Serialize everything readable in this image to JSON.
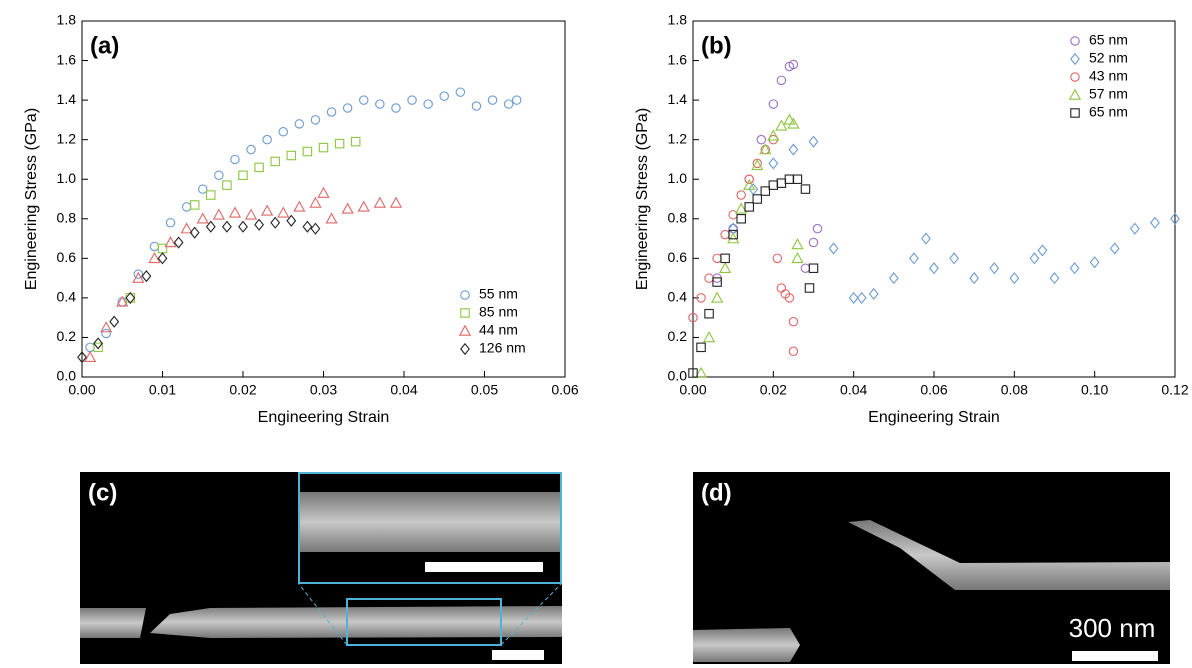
{
  "chart_data": [
    {
      "type": "scatter",
      "panel_label": "(a)",
      "x_label": "Engineering Strain",
      "y_label": "Engineering Stress (GPa)",
      "xlim": [
        0,
        0.06
      ],
      "xticks": [
        {
          "value": 0,
          "label": "0.00"
        },
        0.01,
        0.02,
        0.03,
        0.04,
        0.05,
        0.06
      ],
      "ylim": [
        0,
        1.8
      ],
      "yticks": [
        {
          "value": 0,
          "label": "0.0"
        },
        0.2,
        0.4,
        0.6,
        0.8,
        {
          "value": 1,
          "label": "1.0"
        },
        1.2,
        1.4,
        1.6,
        1.8
      ],
      "legend": "lower right",
      "series": [
        {
          "name": "55 nm",
          "color": "#6b9bd2",
          "marker": "circle",
          "x": [
            0.001,
            0.003,
            0.005,
            0.007,
            0.009,
            0.011,
            0.013,
            0.015,
            0.017,
            0.019,
            0.021,
            0.023,
            0.025,
            0.027,
            0.029,
            0.031,
            0.033,
            0.035,
            0.037,
            0.039,
            0.041,
            0.043,
            0.045,
            0.047,
            0.049,
            0.051,
            0.053,
            0.054
          ],
          "values": [
            0.15,
            0.22,
            0.38,
            0.52,
            0.66,
            0.78,
            0.86,
            0.95,
            1.02,
            1.1,
            1.15,
            1.2,
            1.24,
            1.28,
            1.3,
            1.34,
            1.36,
            1.4,
            1.38,
            1.36,
            1.4,
            1.38,
            1.42,
            1.44,
            1.37,
            1.4,
            1.38,
            1.4
          ]
        },
        {
          "name": "85 nm",
          "color": "#8cc63f",
          "marker": "square",
          "x": [
            0.002,
            0.006,
            0.01,
            0.014,
            0.016,
            0.018,
            0.02,
            0.022,
            0.024,
            0.026,
            0.028,
            0.03,
            0.032,
            0.034
          ],
          "values": [
            0.15,
            0.4,
            0.65,
            0.87,
            0.92,
            0.97,
            1.02,
            1.06,
            1.09,
            1.12,
            1.14,
            1.16,
            1.18,
            1.19
          ]
        },
        {
          "name": "44 nm",
          "color": "#e06666",
          "marker": "triangle",
          "x": [
            0.001,
            0.003,
            0.005,
            0.007,
            0.009,
            0.011,
            0.013,
            0.015,
            0.017,
            0.019,
            0.021,
            0.023,
            0.025,
            0.027,
            0.029,
            0.03,
            0.031,
            0.033,
            0.035,
            0.037,
            0.039
          ],
          "values": [
            0.1,
            0.25,
            0.38,
            0.5,
            0.6,
            0.68,
            0.75,
            0.8,
            0.82,
            0.83,
            0.82,
            0.84,
            0.83,
            0.86,
            0.88,
            0.93,
            0.8,
            0.85,
            0.86,
            0.88,
            0.88
          ]
        },
        {
          "name": "126 nm",
          "color": "#222222",
          "marker": "diamond",
          "x": [
            0,
            0.002,
            0.004,
            0.006,
            0.008,
            0.01,
            0.012,
            0.014,
            0.016,
            0.018,
            0.02,
            0.022,
            0.024,
            0.026,
            0.028,
            0.029
          ],
          "values": [
            0.1,
            0.17,
            0.28,
            0.4,
            0.51,
            0.6,
            0.68,
            0.73,
            0.76,
            0.76,
            0.76,
            0.77,
            0.78,
            0.79,
            0.76,
            0.75
          ]
        }
      ]
    },
    {
      "type": "scatter",
      "panel_label": "(b)",
      "x_label": "Engineering Strain",
      "y_label": "Engineering Stress (GPa)",
      "xlim": [
        0,
        0.12
      ],
      "xticks": [
        {
          "value": 0,
          "label": "0.00"
        },
        0.02,
        0.04,
        0.06,
        0.08,
        {
          "value": 0.1,
          "label": "0.10"
        },
        0.12
      ],
      "ylim": [
        0,
        1.8
      ],
      "yticks": [
        {
          "value": 0,
          "label": "0.0"
        },
        0.2,
        0.4,
        0.6,
        0.8,
        {
          "value": 1,
          "label": "1.0"
        },
        1.2,
        1.4,
        1.6,
        1.8
      ],
      "legend": "upper right",
      "series": [
        {
          "name": "65 nm",
          "color": "#9b6fc9",
          "marker": "circle",
          "x": [
            0.006,
            0.01,
            0.014,
            0.017,
            0.02,
            0.022,
            0.024,
            0.025,
            0.028,
            0.03,
            0.031
          ],
          "values": [
            0.5,
            0.75,
            1.0,
            1.2,
            1.38,
            1.5,
            1.57,
            1.58,
            0.55,
            0.68,
            0.75
          ]
        },
        {
          "name": "52 nm",
          "color": "#6b9bd2",
          "marker": "diamond",
          "x": [
            0.01,
            0.015,
            0.02,
            0.025,
            0.03,
            0.035,
            0.04,
            0.042,
            0.045,
            0.05,
            0.055,
            0.058,
            0.06,
            0.065,
            0.07,
            0.075,
            0.08,
            0.085,
            0.087,
            0.09,
            0.095,
            0.1,
            0.105,
            0.11,
            0.115,
            0.12
          ],
          "values": [
            0.75,
            0.95,
            1.08,
            1.15,
            1.19,
            0.65,
            0.4,
            0.4,
            0.42,
            0.5,
            0.6,
            0.7,
            0.55,
            0.6,
            0.5,
            0.55,
            0.5,
            0.6,
            0.64,
            0.5,
            0.55,
            0.58,
            0.65,
            0.75,
            0.78,
            0.8
          ]
        },
        {
          "name": "43 nm",
          "color": "#e06666",
          "marker": "circle",
          "x": [
            0,
            0.002,
            0.004,
            0.006,
            0.008,
            0.01,
            0.012,
            0.014,
            0.016,
            0.018,
            0.02,
            0.021,
            0.022,
            0.023,
            0.024,
            0.025,
            0.025
          ],
          "values": [
            0.3,
            0.4,
            0.5,
            0.6,
            0.72,
            0.82,
            0.92,
            1.0,
            1.08,
            1.15,
            1.2,
            0.6,
            0.45,
            0.42,
            0.4,
            0.28,
            0.13
          ]
        },
        {
          "name": "57 nm",
          "color": "#8cc63f",
          "marker": "triangle",
          "x": [
            0.002,
            0.004,
            0.006,
            0.008,
            0.01,
            0.012,
            0.014,
            0.016,
            0.018,
            0.02,
            0.022,
            0.024,
            0.025,
            0.026,
            0.026
          ],
          "values": [
            0.02,
            0.2,
            0.4,
            0.55,
            0.7,
            0.85,
            0.97,
            1.07,
            1.15,
            1.22,
            1.27,
            1.3,
            1.28,
            0.6,
            0.67
          ]
        },
        {
          "name": "65 nm",
          "color": "#222222",
          "marker": "square",
          "x": [
            0,
            0.002,
            0.004,
            0.006,
            0.008,
            0.01,
            0.012,
            0.014,
            0.016,
            0.018,
            0.02,
            0.022,
            0.024,
            0.026,
            0.028,
            0.029,
            0.03
          ],
          "values": [
            0.02,
            0.15,
            0.32,
            0.48,
            0.6,
            0.72,
            0.8,
            0.86,
            0.9,
            0.94,
            0.97,
            0.98,
            1.0,
            1.0,
            0.95,
            0.45,
            0.55
          ]
        }
      ]
    }
  ],
  "images": [
    {
      "panel_label": "(c)"
    },
    {
      "panel_label": "(d)",
      "scale_bar": "300 nm"
    }
  ]
}
